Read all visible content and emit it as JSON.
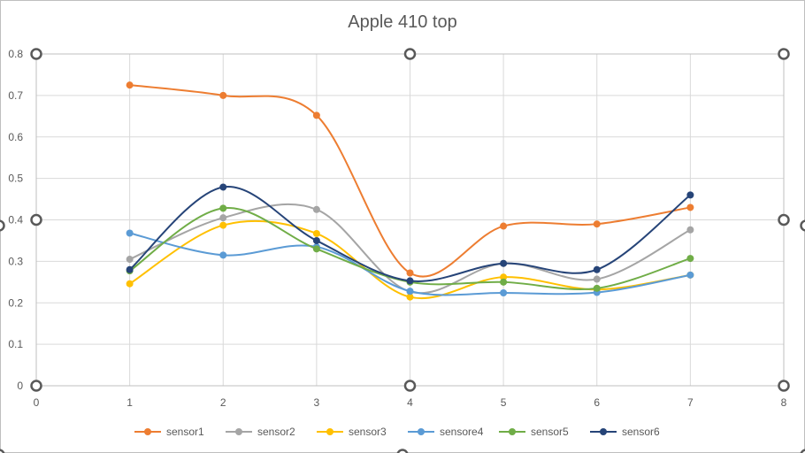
{
  "chart_data": {
    "type": "line",
    "title": "Apple 410 top",
    "xlabel": "",
    "ylabel": "",
    "xlim": [
      0,
      8
    ],
    "ylim": [
      0,
      0.8
    ],
    "x_ticks": [
      "0",
      "1",
      "2",
      "3",
      "4",
      "5",
      "6",
      "7",
      "8"
    ],
    "y_ticks": [
      "0",
      "0.1",
      "0.2",
      "0.3",
      "0.4",
      "0.5",
      "0.6",
      "0.7",
      "0.8"
    ],
    "grid": true,
    "smooth": true,
    "legend_position": "bottom",
    "x": [
      1,
      2,
      3,
      4,
      5,
      6,
      7
    ],
    "series": [
      {
        "name": "sensor1",
        "color": "#ED7D31",
        "values": [
          0.725,
          0.7,
          0.652,
          0.272,
          0.385,
          0.39,
          0.43
        ]
      },
      {
        "name": "sensor2",
        "color": "#A5A5A5",
        "values": [
          0.305,
          0.405,
          0.425,
          0.227,
          0.295,
          0.257,
          0.376
        ]
      },
      {
        "name": "sensor3",
        "color": "#FFC000",
        "values": [
          0.246,
          0.387,
          0.367,
          0.214,
          0.262,
          0.232,
          0.267
        ]
      },
      {
        "name": "sensore4",
        "color": "#5B9BD5",
        "values": [
          0.368,
          0.315,
          0.335,
          0.228,
          0.224,
          0.225,
          0.267
        ]
      },
      {
        "name": "sensor5",
        "color": "#70AD47",
        "values": [
          0.277,
          0.428,
          0.33,
          0.25,
          0.25,
          0.235,
          0.307
        ]
      },
      {
        "name": "sensor6",
        "color": "#264478",
        "values": [
          0.28,
          0.479,
          0.35,
          0.253,
          0.295,
          0.28,
          0.46
        ]
      }
    ]
  }
}
